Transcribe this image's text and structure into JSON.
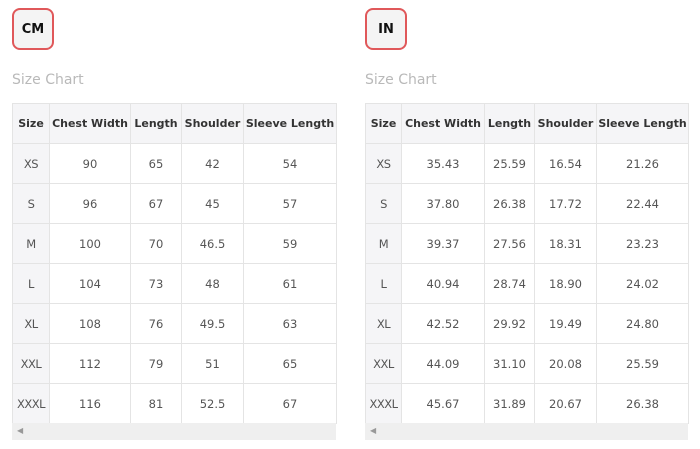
{
  "title": "Size Chart",
  "headers": [
    "Size",
    "Chest Width",
    "Length",
    "Shoulder",
    "Sleeve Length"
  ],
  "panels": [
    {
      "unit": "CM",
      "rows": [
        [
          "XS",
          "90",
          "65",
          "42",
          "54"
        ],
        [
          "S",
          "96",
          "67",
          "45",
          "57"
        ],
        [
          "M",
          "100",
          "70",
          "46.5",
          "59"
        ],
        [
          "L",
          "104",
          "73",
          "48",
          "61"
        ],
        [
          "XL",
          "108",
          "76",
          "49.5",
          "63"
        ],
        [
          "XXL",
          "112",
          "79",
          "51",
          "65"
        ],
        [
          "XXXL",
          "116",
          "81",
          "52.5",
          "67"
        ]
      ]
    },
    {
      "unit": "IN",
      "rows": [
        [
          "XS",
          "35.43",
          "25.59",
          "16.54",
          "21.26"
        ],
        [
          "S",
          "37.80",
          "26.38",
          "17.72",
          "22.44"
        ],
        [
          "M",
          "39.37",
          "27.56",
          "18.31",
          "23.23"
        ],
        [
          "L",
          "40.94",
          "28.74",
          "18.90",
          "24.02"
        ],
        [
          "XL",
          "42.52",
          "29.92",
          "19.49",
          "24.80"
        ],
        [
          "XXL",
          "44.09",
          "31.10",
          "20.08",
          "25.59"
        ],
        [
          "XXXL",
          "45.67",
          "31.89",
          "20.67",
          "26.38"
        ]
      ]
    }
  ],
  "icons": {
    "scroll_left": "scroll-left-arrow-icon"
  },
  "colors": {
    "accent_border": "#e0585a"
  }
}
